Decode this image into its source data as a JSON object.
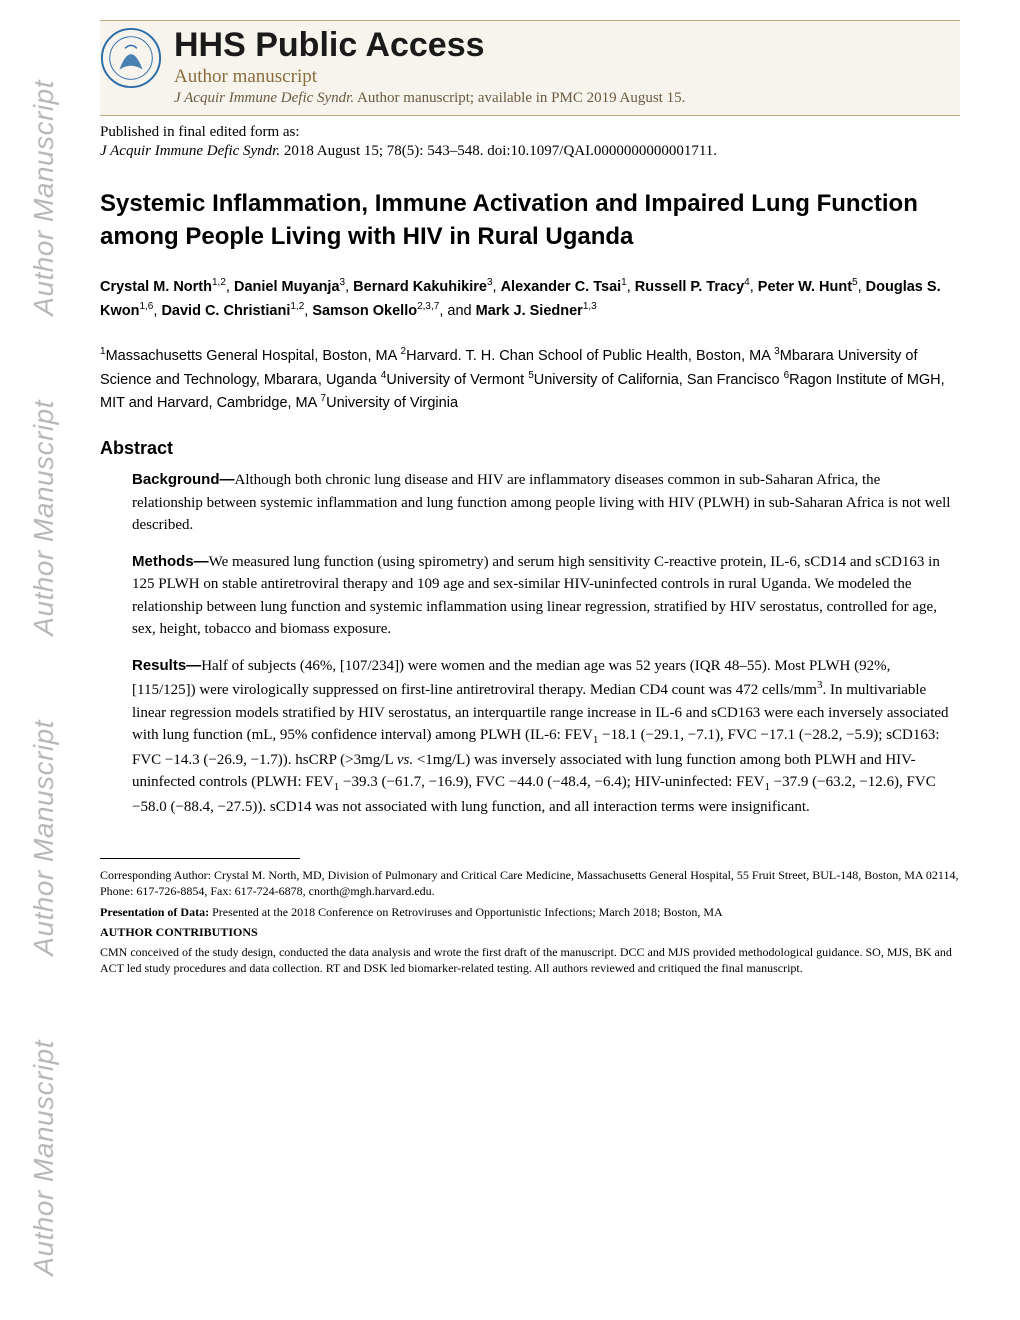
{
  "watermark_text": "Author Manuscript",
  "header": {
    "hhs_title": "HHS Public Access",
    "author_manuscript": "Author manuscript",
    "journal_abbrev": "J Acquir Immune Defic Syndr.",
    "availability_rest": " Author manuscript; available in PMC 2019 August 15."
  },
  "pub_info": "Published in final edited form as:",
  "citation": {
    "journal": "J Acquir Immune Defic Syndr.",
    "rest": " 2018 August 15; 78(5): 543–548. doi:10.1097/QAI.0000000000001711."
  },
  "title": "Systemic Inflammation, Immune Activation and Impaired Lung Function among People Living with HIV in Rural Uganda",
  "authors_html": "Crystal M. North|1,2|, Daniel Muyanja|3|, Bernard Kakuhikire|3|, Alexander C. Tsai|1|, Russell P. Tracy|4|, Peter W. Hunt|5|, Douglas S. Kwon|1,6|, David C. Christiani|1,2|, Samson Okello|2,3,7|, and Mark J. Siedner|1,3",
  "affils": "1|Massachusetts General Hospital, Boston, MA |2|Harvard. T. H. Chan School of Public Health, Boston, MA |3|Mbarara University of Science and Technology, Mbarara, Uganda |4|University of Vermont |5|University of California, San Francisco |6|Ragon Institute of MGH, MIT and Harvard, Cambridge, MA |7|University of Virginia",
  "abstract_heading": "Abstract",
  "abstract": {
    "background_label": "Background—",
    "background": "Although both chronic lung disease and HIV are inflammatory diseases common in sub-Saharan Africa, the relationship between systemic inflammation and lung function among people living with HIV (PLWH) in sub-Saharan Africa is not well described.",
    "methods_label": "Methods—",
    "methods": "We measured lung function (using spirometry) and serum high sensitivity C-reactive protein, IL-6, sCD14 and sCD163 in 125 PLWH on stable antiretroviral therapy and 109 age and sex-similar HIV-uninfected controls in rural Uganda. We modeled the relationship between lung function and systemic inflammation using linear regression, stratified by HIV serostatus, controlled for age, sex, height, tobacco and biomass exposure.",
    "results_label": "Results—",
    "results_p1": "Half of subjects (46%, [107/234]) were women and the median age was 52 years (IQR 48–55). Most PLWH (92%, [115/125]) were virologically suppressed on first-line antiretroviral therapy. Median CD4 count was 472 cells/mm",
    "results_p1b": ". In multivariable linear regression models stratified by HIV serostatus, an interquartile range increase in IL-6 and sCD163 were each inversely associated with lung function (mL, 95% confidence interval) among PLWH (IL-6: FEV",
    "results_p2": " −18.1 (−29.1, −7.1), FVC −17.1 (−28.2, −5.9); sCD163: FVC −14.3 (−26.9, −1.7)). hsCRP (>3mg/L ",
    "results_vs": "vs.",
    "results_p3": " <1mg/L) was inversely associated with lung function among both PLWH and HIV-uninfected controls (PLWH: FEV",
    "results_p4": " −39.3 (−61.7, −16.9), FVC −44.0 (−48.4, −6.4); HIV-uninfected: FEV",
    "results_p5": " −37.9 (−63.2, −12.6), FVC −58.0 (−88.4, −27.5)). sCD14 was not associated with lung function, and all interaction terms were insignificant."
  },
  "footnotes": {
    "corresponding": "Corresponding Author: Crystal M. North, MD, Division of Pulmonary and Critical Care Medicine, Massachusetts General Hospital, 55 Fruit Street, BUL-148, Boston, MA 02114, Phone: 617-726-8854, Fax: 617-724-6878, cnorth@mgh.harvard.edu.",
    "presentation_label": "Presentation of Data: ",
    "presentation": "Presented at the 2018 Conference on Retroviruses and Opportunistic Infections; March 2018; Boston, MA",
    "contrib_label": "AUTHOR CONTRIBUTIONS",
    "contrib": "CMN conceived of the study design, conducted the data analysis and wrote the first draft of the manuscript. DCC and MJS provided methodological guidance. SO, MJS, BK and ACT led study procedures and data collection. RT and DSK led biomarker-related testing. All authors reviewed and critiqued the final manuscript."
  },
  "colors": {
    "header_bg": "#f7f3ed",
    "header_border": "#c0a878",
    "author_ms_color": "#8a6d3b",
    "watermark_color": "#b8b8b8",
    "logo_blue": "#2a6ca8"
  }
}
